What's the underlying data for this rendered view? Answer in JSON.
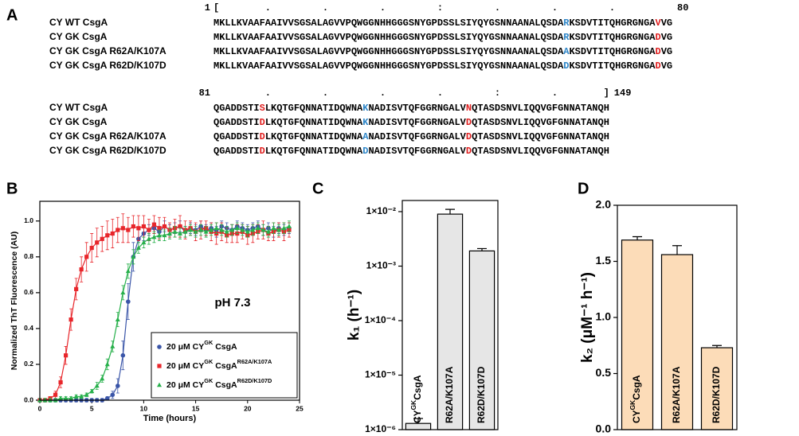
{
  "alignment": {
    "panel_label": "A",
    "blocks": [
      {
        "start": "1",
        "end": "80",
        "ruler": "[        .         .         .         :         .         .         .",
        "rows": [
          {
            "name": "CY WT CsgA",
            "segments": [
              {
                "text": "MKLLKVAAFAAIVVSGSALAGVVPQWGGNHHGGGSNYGPDSSLSIYQYGSNNAANALQSDA"
              },
              {
                "text": "R",
                "color": "#2e86c8"
              },
              {
                "text": "KSDVTITQHGRGNGA"
              },
              {
                "text": "V",
                "color": "#e02020"
              },
              {
                "text": "VG"
              }
            ]
          },
          {
            "name": "CY GK CsgA",
            "segments": [
              {
                "text": "MKLLKVAAFAAIVVSGSALAGVVPQWGGNHHGGGSNYGPDSSLSIYQYGSNNAANALQSDA"
              },
              {
                "text": "R",
                "color": "#2e86c8"
              },
              {
                "text": "KSDVTITQHGRGNGA"
              },
              {
                "text": "D",
                "color": "#e02020"
              },
              {
                "text": "VG"
              }
            ]
          },
          {
            "name": "CY GK CsgA R62A/K107A",
            "segments": [
              {
                "text": "MKLLKVAAFAAIVVSGSALAGVVPQWGGNHHGGGSNYGPDSSLSIYQYGSNNAANALQSDA"
              },
              {
                "text": "A",
                "color": "#2e86c8"
              },
              {
                "text": "KSDVTITQHGRGNGA"
              },
              {
                "text": "D",
                "color": "#e02020"
              },
              {
                "text": "VG"
              }
            ]
          },
          {
            "name": "CY GK CsgA R62D/K107D",
            "segments": [
              {
                "text": "MKLLKVAAFAAIVVSGSALAGVVPQWGGNHHGGGSNYGPDSSLSIYQYGSNNAANALQSDA"
              },
              {
                "text": "D",
                "color": "#2e86c8"
              },
              {
                "text": "KSDVTITQHGRGNGA"
              },
              {
                "text": "D",
                "color": "#e02020"
              },
              {
                "text": "VG"
              }
            ]
          }
        ]
      },
      {
        "start": "81",
        "end": "149",
        "ruler": "         .         .         .         .         :         .        ]",
        "rows": [
          {
            "name": "CY WT CsgA",
            "segments": [
              {
                "text": "QGADDSTI"
              },
              {
                "text": "S",
                "color": "#e02020"
              },
              {
                "text": "LKQTGFQNNATIDQWNA"
              },
              {
                "text": "K",
                "color": "#2e86c8"
              },
              {
                "text": "NADISVTQFGGRNGALV"
              },
              {
                "text": "N",
                "color": "#e02020"
              },
              {
                "text": "QTASDSNVLIQQVGFGNNATANQH"
              }
            ]
          },
          {
            "name": "CY GK CsgA",
            "segments": [
              {
                "text": "QGADDSTI"
              },
              {
                "text": "D",
                "color": "#e02020"
              },
              {
                "text": "LKQTGFQNNATIDQWNA"
              },
              {
                "text": "K",
                "color": "#2e86c8"
              },
              {
                "text": "NADISVTQFGGRNGALV"
              },
              {
                "text": "D",
                "color": "#e02020"
              },
              {
                "text": "QTASDSNVLIQQVGFGNNATANQH"
              }
            ]
          },
          {
            "name": "CY GK CsgA R62A/K107A",
            "segments": [
              {
                "text": "QGADDSTI"
              },
              {
                "text": "D",
                "color": "#e02020"
              },
              {
                "text": "LKQTGFQNNATIDQWNA"
              },
              {
                "text": "A",
                "color": "#2e86c8"
              },
              {
                "text": "NADISVTQFGGRNGALV"
              },
              {
                "text": "D",
                "color": "#e02020"
              },
              {
                "text": "QTASDSNVLIQQVGFGNNATANQH"
              }
            ]
          },
          {
            "name": "CY GK CsgA R62D/K107D",
            "segments": [
              {
                "text": "QGADDSTI"
              },
              {
                "text": "D",
                "color": "#e02020"
              },
              {
                "text": "LKQTGFQNNATIDQWNA"
              },
              {
                "text": "D",
                "color": "#2e86c8"
              },
              {
                "text": "NADISVTQFGGRNGALV"
              },
              {
                "text": "D",
                "color": "#e02020"
              },
              {
                "text": "QTASDSNVLIQQVGFGNNATANQH"
              }
            ]
          }
        ]
      }
    ]
  },
  "chart_data": [
    {
      "type": "line",
      "panel_label": "B",
      "x_label": "Time (hours)",
      "y_label": "Normalized ThT Fluorescence (AU)",
      "annotation": "pH 7.3",
      "xlim": [
        0,
        25
      ],
      "xticks": [
        0,
        5,
        10,
        15,
        20,
        25
      ],
      "ylim": [
        0,
        1.11
      ],
      "yticks": [
        {
          "value": 0,
          "label": "0.0"
        },
        0.2,
        0.4,
        0.6,
        0.8,
        {
          "value": 1,
          "label": "1.0"
        }
      ],
      "x": [
        0,
        0.5,
        1,
        1.5,
        2,
        2.5,
        3,
        3.5,
        4,
        4.5,
        5,
        5.5,
        6,
        6.5,
        7,
        7.5,
        8,
        8.5,
        9,
        9.5,
        10,
        10.5,
        11,
        11.5,
        12,
        12.5,
        13,
        13.5,
        14,
        14.5,
        15,
        15.5,
        16,
        16.5,
        17,
        17.5,
        18,
        18.5,
        19,
        19.5,
        20,
        20.5,
        21,
        21.5,
        22,
        22.5,
        23,
        23.5,
        24
      ],
      "series": [
        {
          "name": [
            "20 μM CY",
            "GK",
            " CsgA"
          ],
          "color": "#3a55a8",
          "marker": "circle",
          "values": [
            0,
            0,
            0,
            0,
            0,
            0,
            0,
            0,
            0,
            0,
            0,
            0,
            0,
            0.01,
            0.03,
            0.08,
            0.25,
            0.55,
            0.8,
            0.9,
            0.93,
            0.95,
            0.96,
            0.94,
            0.97,
            0.95,
            0.96,
            0.97,
            0.94,
            0.96,
            0.95,
            0.97,
            0.95,
            0.96,
            0.94,
            0.97,
            0.96,
            0.95,
            0.97,
            0.96,
            0.95,
            0.96,
            0.97,
            0.95,
            0.96,
            0.94,
            0.96,
            0.95,
            0.96
          ],
          "errors": [
            0.01,
            0.01,
            0.01,
            0.01,
            0.01,
            0.01,
            0.01,
            0.01,
            0.01,
            0.01,
            0.01,
            0.01,
            0.01,
            0.01,
            0.02,
            0.04,
            0.08,
            0.1,
            0.08,
            0.05,
            0.04,
            0.03,
            0.03,
            0.03,
            0.03,
            0.03,
            0.03,
            0.03,
            0.03,
            0.03,
            0.03,
            0.03,
            0.03,
            0.03,
            0.03,
            0.03,
            0.03,
            0.03,
            0.03,
            0.03,
            0.03,
            0.03,
            0.03,
            0.03,
            0.03,
            0.03,
            0.03,
            0.03,
            0.03
          ]
        },
        {
          "name": [
            "20 μM CY",
            "GK",
            " CsgA",
            "R62A/K107A"
          ],
          "color": "#e8262b",
          "marker": "square",
          "values": [
            0,
            0,
            0.01,
            0.03,
            0.1,
            0.25,
            0.45,
            0.62,
            0.73,
            0.8,
            0.85,
            0.88,
            0.9,
            0.92,
            0.93,
            0.95,
            0.96,
            0.95,
            0.97,
            0.96,
            0.97,
            0.95,
            0.98,
            0.96,
            0.97,
            0.95,
            0.96,
            0.97,
            0.95,
            0.96,
            0.94,
            0.95,
            0.96,
            0.94,
            0.93,
            0.94,
            0.92,
            0.93,
            0.93,
            0.94,
            0.92,
            0.93,
            0.94,
            0.95,
            0.93,
            0.94,
            0.95,
            0.94,
            0.95
          ],
          "errors": [
            0,
            0,
            0.01,
            0.02,
            0.03,
            0.05,
            0.06,
            0.06,
            0.07,
            0.08,
            0.08,
            0.08,
            0.07,
            0.08,
            0.08,
            0.07,
            0.08,
            0.07,
            0.06,
            0.07,
            0.06,
            0.06,
            0.05,
            0.06,
            0.05,
            0.04,
            0.05,
            0.06,
            0.05,
            0.04,
            0.05,
            0.05,
            0.04,
            0.05,
            0.06,
            0.05,
            0.04,
            0.05,
            0.05,
            0.04,
            0.05,
            0.05,
            0.04,
            0.05,
            0.04,
            0.05,
            0.04,
            0.05,
            0.04
          ]
        },
        {
          "name": [
            "20 μM CY",
            "GK",
            " CsgA",
            "R62D/K107D"
          ],
          "color": "#27b04b",
          "marker": "triangle",
          "values": [
            0,
            0,
            0,
            0,
            0.01,
            0.01,
            0.01,
            0.02,
            0.02,
            0.03,
            0.05,
            0.08,
            0.12,
            0.2,
            0.3,
            0.45,
            0.6,
            0.72,
            0.8,
            0.85,
            0.88,
            0.9,
            0.91,
            0.92,
            0.92,
            0.93,
            0.94,
            0.93,
            0.94,
            0.95,
            0.94,
            0.95,
            0.94,
            0.95,
            0.96,
            0.95,
            0.94,
            0.95,
            0.96,
            0.95,
            0.94,
            0.95,
            0.96,
            0.95,
            0.94,
            0.96,
            0.95,
            0.96,
            0.97
          ],
          "errors": [
            0.01,
            0.01,
            0.01,
            0.01,
            0.01,
            0.01,
            0.01,
            0.01,
            0.01,
            0.01,
            0.01,
            0.02,
            0.02,
            0.03,
            0.03,
            0.04,
            0.04,
            0.04,
            0.04,
            0.03,
            0.03,
            0.03,
            0.03,
            0.03,
            0.03,
            0.03,
            0.03,
            0.03,
            0.03,
            0.03,
            0.03,
            0.03,
            0.03,
            0.03,
            0.03,
            0.03,
            0.03,
            0.03,
            0.03,
            0.03,
            0.03,
            0.03,
            0.03,
            0.03,
            0.03,
            0.03,
            0.03,
            0.03,
            0.03
          ]
        }
      ]
    },
    {
      "type": "bar",
      "panel_label": "C",
      "y_label": "k₁ (h⁻¹)",
      "log_scale": true,
      "color": "#e6e6e6",
      "categories": [
        [
          "CY",
          "GK",
          "CsgA"
        ],
        "R62A/K107A",
        "R62D/K107D"
      ],
      "values": [
        1.3e-06,
        0.009,
        0.0019
      ],
      "errors": [
        3e-07,
        0.002,
        0.0002
      ],
      "ylim": [
        1e-06,
        0.016
      ],
      "yticks": [
        {
          "value": 1e-06,
          "label": "1×10⁻⁶"
        },
        {
          "value": 1e-05,
          "label": "1×10⁻⁵"
        },
        {
          "value": 0.0001,
          "label": "1×10⁻⁴"
        },
        {
          "value": 0.001,
          "label": "1×10⁻³"
        },
        {
          "value": 0.01,
          "label": "1×10⁻²"
        }
      ]
    },
    {
      "type": "bar",
      "panel_label": "D",
      "y_label": "k₂ (μM⁻¹ h⁻¹)",
      "log_scale": false,
      "color": "#fcdcb8",
      "categories": [
        [
          "CY",
          "GK",
          "CsgA"
        ],
        "R62A/K107A",
        "R62D/K107D"
      ],
      "values": [
        1.69,
        1.56,
        0.73
      ],
      "errors": [
        0.03,
        0.08,
        0.02
      ],
      "ylim": [
        0,
        2
      ],
      "yticks": [
        {
          "value": 0,
          "label": "0.0"
        },
        0.5,
        {
          "value": 1,
          "label": "1.0"
        },
        1.5,
        {
          "value": 2,
          "label": "2.0"
        }
      ]
    }
  ]
}
